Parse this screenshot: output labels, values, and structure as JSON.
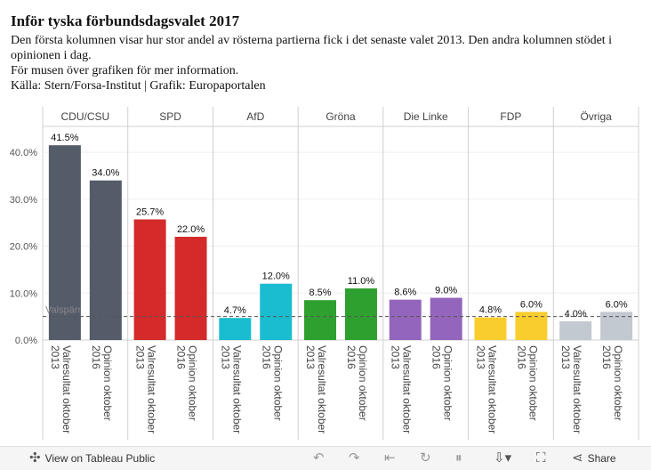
{
  "header": {
    "title": "Inför tyska förbundsdagsvalet 2017",
    "subtitle": "Den första kolumnen visar hur stor andel av rösterna partierna fick i det senaste valet 2013. Den andra kolumnen stödet i opinionen i dag.",
    "hover_hint": "För musen över grafiken för mer information.",
    "source": "Källa: Stern/Forsa-Institut  | Grafik: Europaportalen"
  },
  "chart_data": {
    "type": "bar",
    "categories": [
      "Valresultat oktober 2013",
      "Opinion oktober 2016"
    ],
    "groups": [
      {
        "name": "CDU/CSU",
        "values": [
          41.5,
          34.0
        ],
        "labels": [
          "41.5%",
          "34.0%"
        ],
        "color": "#545b69"
      },
      {
        "name": "SPD",
        "values": [
          25.7,
          22.0
        ],
        "labels": [
          "25.7%",
          "22.0%"
        ],
        "color": "#d42a2a"
      },
      {
        "name": "AfD",
        "values": [
          4.7,
          12.0
        ],
        "labels": [
          "4.7%",
          "12.0%"
        ],
        "color": "#1abccf"
      },
      {
        "name": "Gröna",
        "values": [
          8.5,
          11.0
        ],
        "labels": [
          "8.5%",
          "11.0%"
        ],
        "color": "#2ea02f"
      },
      {
        "name": "Die Linke",
        "values": [
          8.6,
          9.0
        ],
        "labels": [
          "8.6%",
          "9.0%"
        ],
        "color": "#9465bc"
      },
      {
        "name": "FDP",
        "values": [
          4.8,
          6.0
        ],
        "labels": [
          "4.8%",
          "6.0%"
        ],
        "color": "#f9cd2e"
      },
      {
        "name": "Övriga",
        "values": [
          4.0,
          6.0
        ],
        "labels": [
          "4.0%",
          "6.0%"
        ],
        "color": "#c2c9d0"
      }
    ],
    "ylim": [
      0,
      44
    ],
    "yticks": [
      0,
      10,
      20,
      30,
      40
    ],
    "ytick_labels": [
      "0.0%",
      "10.0%",
      "20.0%",
      "30.0%",
      "40.0%"
    ],
    "reference_line": {
      "value": 5,
      "label": "Valspärr"
    }
  },
  "toolbar": {
    "view_label": "View on Tableau Public",
    "share_label": "Share"
  }
}
